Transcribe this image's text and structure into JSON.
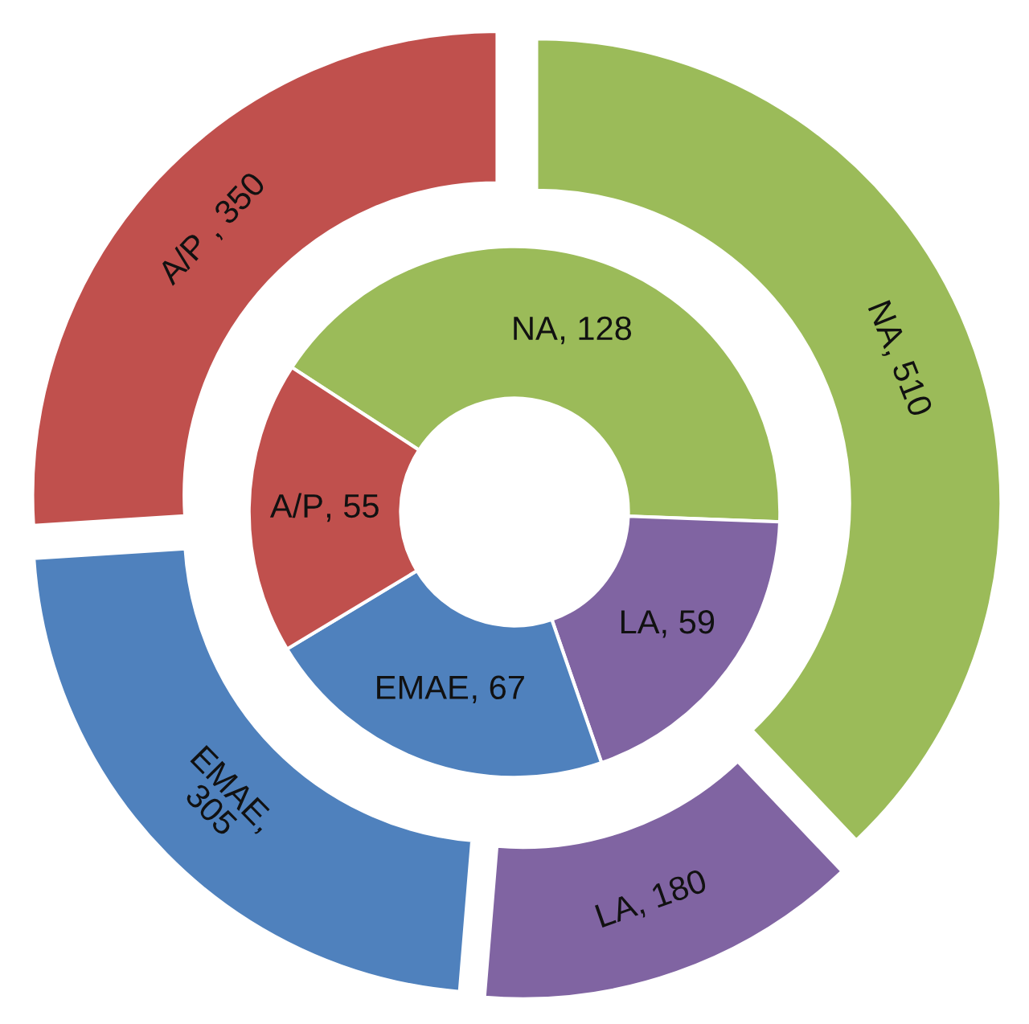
{
  "chart_data": {
    "type": "donut",
    "categories": [
      "NA",
      "LA",
      "EMAE",
      "A/P"
    ],
    "colors": [
      "#9bbb59",
      "#8064a2",
      "#4f81bd",
      "#c0504d"
    ],
    "series": [
      {
        "values": [
          128,
          59,
          67,
          55
        ],
        "value_labels": [
          ", 128",
          ", 59",
          ", 67",
          ", 55"
        ]
      },
      {
        "values": [
          510,
          180,
          305,
          350
        ],
        "value_labels": [
          ", 510",
          ", 180",
          ",\n305",
          " , 350"
        ]
      }
    ]
  }
}
